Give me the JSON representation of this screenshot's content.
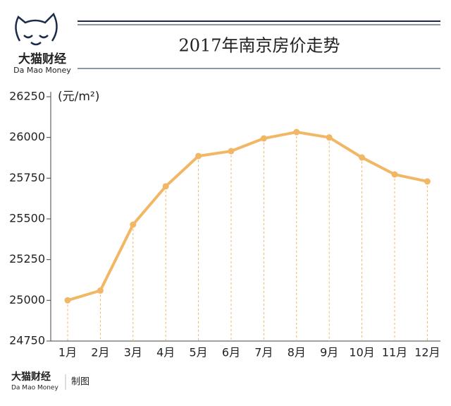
{
  "logo": {
    "name": "大猫财经",
    "subtitle": "Da Mao Money"
  },
  "footer": {
    "name": "大猫财经",
    "subtitle": "Da Mao Money",
    "note": "制图"
  },
  "chart_data": {
    "type": "line",
    "title": "2017年南京房价走势",
    "ylabel": "(元/m²)",
    "categories": [
      "1月",
      "2月",
      "3月",
      "4月",
      "5月",
      "6月",
      "7月",
      "8月",
      "9月",
      "10月",
      "11月",
      "12月"
    ],
    "series": [
      {
        "name": "南京房价",
        "color": "#f2b765",
        "values": [
          25000,
          25060,
          25465,
          25700,
          25886,
          25916,
          25994,
          26033,
          26000,
          25877,
          25773,
          25730
        ]
      }
    ],
    "ylim": [
      24750,
      26250
    ],
    "yticks": [
      24750,
      25000,
      25250,
      25500,
      25750,
      26000,
      26250
    ],
    "drop_lines": true
  }
}
